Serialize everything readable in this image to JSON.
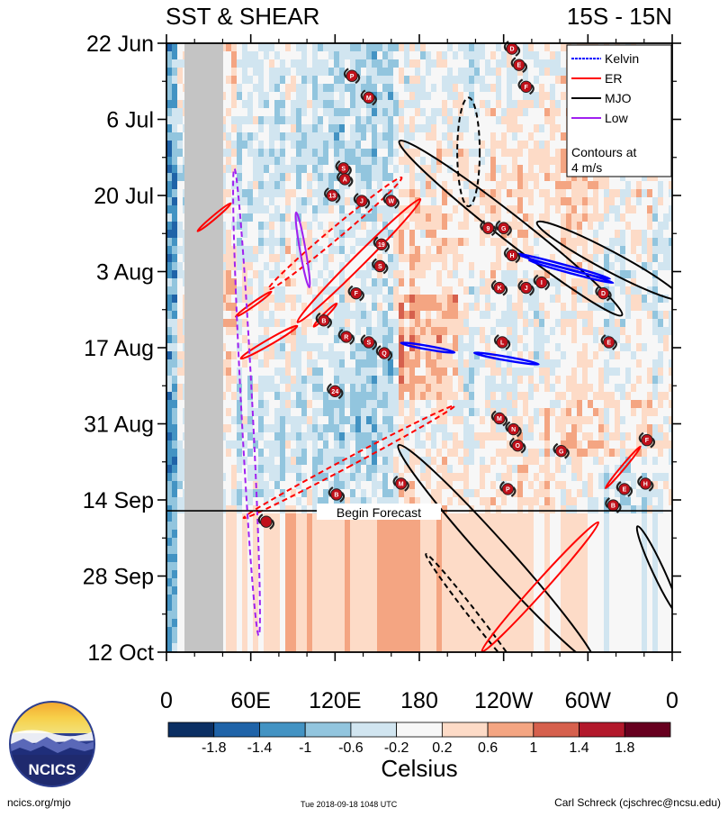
{
  "chart_data": {
    "type": "heatmap",
    "title_left": "SST & SHEAR",
    "title_right": "15S - 15N",
    "x_ticks": [
      "0",
      "60E",
      "120E",
      "180",
      "120W",
      "60W",
      "0"
    ],
    "x_degrees": [
      0,
      60,
      120,
      180,
      240,
      300,
      360
    ],
    "y_ticks": [
      "22 Jun",
      "6 Jul",
      "20 Jul",
      "3 Aug",
      "17 Aug",
      "31 Aug",
      "14 Sep",
      "28 Sep",
      "12 Oct"
    ],
    "y_day_range": [
      0,
      112
    ],
    "forecast_start_day": 86,
    "forecast_label": "Begin Forecast",
    "colorbar": {
      "label": "Celsius",
      "tick_labels": [
        "-1.8",
        "-1.4",
        "-1",
        "-0.6",
        "-0.2",
        "0.2",
        "0.6",
        "1",
        "1.4",
        "1.8"
      ],
      "colors": [
        "#0b2f63",
        "#1f63a8",
        "#4393c3",
        "#92c5de",
        "#d1e5f0",
        "#f7f7f7",
        "#fddbc7",
        "#f4a582",
        "#d6604d",
        "#b2182b",
        "#67001f"
      ]
    },
    "legend": {
      "items": [
        {
          "label": "Kelvin",
          "color": "#0000ff"
        },
        {
          "label": "ER",
          "color": "#ff0000"
        },
        {
          "label": "MJO",
          "color": "#000000"
        },
        {
          "label": "Low",
          "color": "#a020f0"
        }
      ],
      "note_line1": "Contours at",
      "note_line2": "4 m/s"
    },
    "contours": [
      {
        "type": "MJO",
        "lon": 215,
        "day": 20,
        "rx": 8,
        "ry": 10,
        "angle": 0,
        "dashed": true
      },
      {
        "type": "MJO",
        "lon": 245,
        "day": 34,
        "rx": 9,
        "ry": 26,
        "angle": -52,
        "dashed": false
      },
      {
        "type": "MJO",
        "lon": 315,
        "day": 40,
        "rx": 7,
        "ry": 15,
        "angle": -62,
        "dashed": false
      },
      {
        "type": "MJO",
        "lon": 235,
        "day": 94,
        "rx": 9,
        "ry": 27,
        "angle": -42,
        "dashed": false
      },
      {
        "type": "MJO",
        "lon": 350,
        "day": 97,
        "rx": 4,
        "ry": 9,
        "angle": -25,
        "dashed": false
      },
      {
        "type": "MJO",
        "lon": 218,
        "day": 105,
        "rx": 3,
        "ry": 14,
        "angle": -38,
        "dashed": true
      },
      {
        "type": "Kelvin",
        "lon": 282,
        "day": 41,
        "rx": 1,
        "ry": 9,
        "angle": -75,
        "dashed": false
      },
      {
        "type": "Kelvin",
        "lon": 288,
        "day": 42,
        "rx": 1,
        "ry": 8,
        "angle": -75,
        "dashed": false
      },
      {
        "type": "Kelvin",
        "lon": 186,
        "day": 56,
        "rx": 1,
        "ry": 5,
        "angle": -80,
        "dashed": false
      },
      {
        "type": "Kelvin",
        "lon": 242,
        "day": 58,
        "rx": 1,
        "ry": 6,
        "angle": -80,
        "dashed": false
      },
      {
        "type": "ER",
        "lon": 120,
        "day": 35,
        "rx": 4,
        "ry": 16,
        "angle": 50,
        "dashed": true
      },
      {
        "type": "ER",
        "lon": 137,
        "day": 40,
        "rx": 4,
        "ry": 16,
        "angle": 45,
        "dashed": false
      },
      {
        "type": "ER",
        "lon": 34,
        "day": 32,
        "rx": 1,
        "ry": 4,
        "angle": 50,
        "dashed": false
      },
      {
        "type": "ER",
        "lon": 62,
        "day": 48,
        "rx": 1,
        "ry": 4,
        "angle": 55,
        "dashed": false
      },
      {
        "type": "ER",
        "lon": 113,
        "day": 50,
        "rx": 1,
        "ry": 3,
        "angle": 45,
        "dashed": false
      },
      {
        "type": "ER",
        "lon": 73,
        "day": 55,
        "rx": 2,
        "ry": 6,
        "angle": 60,
        "dashed": false
      },
      {
        "type": "ER",
        "lon": 130,
        "day": 77,
        "rx": 3,
        "ry": 22,
        "angle": 62,
        "dashed": true
      },
      {
        "type": "ER",
        "lon": 325,
        "day": 78,
        "rx": 1,
        "ry": 5,
        "angle": 40,
        "dashed": false
      },
      {
        "type": "ER",
        "lon": 266,
        "day": 100,
        "rx": 4,
        "ry": 16,
        "angle": 42,
        "dashed": false
      },
      {
        "type": "Low",
        "lon": 97,
        "day": 38,
        "rx": 2,
        "ry": 7,
        "angle": -10,
        "dashed": false
      },
      {
        "type": "Low",
        "lon": 57,
        "day": 66,
        "rx": 4,
        "ry": 43,
        "angle": -3,
        "dashed": true
      }
    ],
    "storms": [
      {
        "label": "D",
        "lon": 246,
        "day": 1
      },
      {
        "label": "E",
        "lon": 251,
        "day": 4
      },
      {
        "label": "F",
        "lon": 256,
        "day": 8
      },
      {
        "label": "P",
        "lon": 132,
        "day": 6
      },
      {
        "label": "M",
        "lon": 144,
        "day": 10
      },
      {
        "label": "S",
        "lon": 126,
        "day": 23
      },
      {
        "label": "A",
        "lon": 127,
        "day": 25
      },
      {
        "label": "13",
        "lon": 118,
        "day": 28
      },
      {
        "label": "J",
        "lon": 139,
        "day": 29
      },
      {
        "label": "W",
        "lon": 160,
        "day": 29
      },
      {
        "label": "9",
        "lon": 229,
        "day": 34
      },
      {
        "label": "G",
        "lon": 240,
        "day": 34
      },
      {
        "label": "19",
        "lon": 153,
        "day": 37
      },
      {
        "label": "S",
        "lon": 152,
        "day": 41
      },
      {
        "label": "H",
        "lon": 246,
        "day": 39
      },
      {
        "label": "K",
        "lon": 237,
        "day": 45
      },
      {
        "label": "J",
        "lon": 256,
        "day": 45
      },
      {
        "label": "I",
        "lon": 267,
        "day": 44
      },
      {
        "label": "D",
        "lon": 311,
        "day": 46
      },
      {
        "label": "F",
        "lon": 135,
        "day": 46
      },
      {
        "label": "B",
        "lon": 112,
        "day": 51
      },
      {
        "label": "R",
        "lon": 128,
        "day": 54
      },
      {
        "label": "S",
        "lon": 144,
        "day": 55
      },
      {
        "label": "Q",
        "lon": 155,
        "day": 57
      },
      {
        "label": "L",
        "lon": 239,
        "day": 55
      },
      {
        "label": "E",
        "lon": 315,
        "day": 55
      },
      {
        "label": "24",
        "lon": 120,
        "day": 64
      },
      {
        "label": "M",
        "lon": 237,
        "day": 69
      },
      {
        "label": "N",
        "lon": 247,
        "day": 71
      },
      {
        "label": "O",
        "lon": 250,
        "day": 74
      },
      {
        "label": "G",
        "lon": 281,
        "day": 75
      },
      {
        "label": "F",
        "lon": 342,
        "day": 73
      },
      {
        "label": "M",
        "lon": 167,
        "day": 81
      },
      {
        "label": "B",
        "lon": 121,
        "day": 83
      },
      {
        "label": "P",
        "lon": 243,
        "day": 82
      },
      {
        "label": "E",
        "lon": 326,
        "day": 82
      },
      {
        "label": "H",
        "lon": 341,
        "day": 81
      },
      {
        "label": "B",
        "lon": 318,
        "day": 85
      },
      {
        "label": "",
        "lon": 71,
        "day": 88
      }
    ]
  },
  "logo": {
    "text": "NCICS"
  },
  "footer": {
    "left": "ncics.org/mjo",
    "center": "Tue 2018-09-18 1048 UTC",
    "right": "Carl Schreck (cjschrec@ncsu.edu)"
  }
}
